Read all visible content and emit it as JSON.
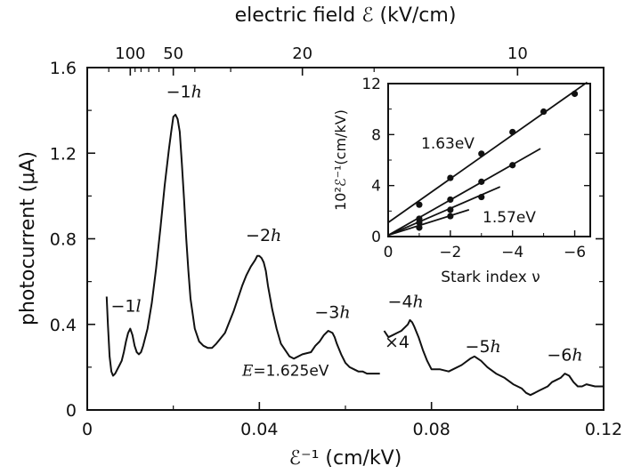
{
  "chart_data": [
    {
      "type": "line",
      "top_axis": {
        "label": "electric field ℰ (kV/cm)",
        "ticks": [
          {
            "label": "100",
            "field": 100
          },
          {
            "label": "50",
            "field": 50
          },
          {
            "label": "20",
            "field": 20
          },
          {
            "label": "10",
            "field": 10
          }
        ]
      },
      "xlabel": "ℰ⁻¹ (cm/kV)",
      "ylabel": "photocurrent (μA)",
      "xlim": [
        0,
        0.12
      ],
      "ylim": [
        0,
        1.6
      ],
      "x_ticks": [
        {
          "label": "0",
          "value": 0
        },
        {
          "label": "0.04",
          "value": 0.04
        },
        {
          "label": "0.08",
          "value": 0.08
        },
        {
          "label": "0.12",
          "value": 0.12
        }
      ],
      "y_ticks": [
        {
          "label": "0",
          "value": 0
        },
        {
          "label": "0.4",
          "value": 0.4
        },
        {
          "label": "0.8",
          "value": 0.8
        },
        {
          "label": "1.2",
          "value": 1.2
        },
        {
          "label": "1.6",
          "value": 1.6
        }
      ],
      "series": [
        {
          "x": [
            0.0045,
            0.0048,
            0.0052,
            0.0056,
            0.006,
            0.0065,
            0.007,
            0.0075,
            0.008,
            0.0085,
            0.009,
            0.0095,
            0.01,
            0.0105,
            0.011,
            0.0115,
            0.012,
            0.0125,
            0.013,
            0.014,
            0.015,
            0.016,
            0.017,
            0.018,
            0.019,
            0.0195,
            0.02,
            0.0205,
            0.021,
            0.0215,
            0.022,
            0.0225,
            0.023,
            0.0235,
            0.024,
            0.025,
            0.026,
            0.027,
            0.028,
            0.029,
            0.03,
            0.032,
            0.034,
            0.036,
            0.037,
            0.038,
            0.039,
            0.0395,
            0.04,
            0.0405,
            0.041,
            0.0415,
            0.042,
            0.043,
            0.044,
            0.045,
            0.046,
            0.047,
            0.048,
            0.05,
            0.052,
            0.053,
            0.054,
            0.055,
            0.056,
            0.057,
            0.0575,
            0.058,
            0.059,
            0.06,
            0.061,
            0.062,
            0.063,
            0.064,
            0.065,
            0.066,
            0.067,
            0.068
          ],
          "y": [
            0.53,
            0.4,
            0.25,
            0.18,
            0.16,
            0.17,
            0.19,
            0.21,
            0.23,
            0.27,
            0.32,
            0.36,
            0.38,
            0.35,
            0.3,
            0.27,
            0.26,
            0.27,
            0.3,
            0.38,
            0.5,
            0.66,
            0.85,
            1.05,
            1.22,
            1.3,
            1.37,
            1.38,
            1.36,
            1.3,
            1.15,
            0.98,
            0.8,
            0.65,
            0.52,
            0.38,
            0.32,
            0.3,
            0.29,
            0.29,
            0.31,
            0.36,
            0.46,
            0.58,
            0.63,
            0.67,
            0.7,
            0.72,
            0.72,
            0.71,
            0.69,
            0.65,
            0.58,
            0.47,
            0.38,
            0.31,
            0.28,
            0.25,
            0.24,
            0.26,
            0.27,
            0.3,
            0.32,
            0.35,
            0.37,
            0.36,
            0.34,
            0.31,
            0.26,
            0.22,
            0.2,
            0.19,
            0.18,
            0.18,
            0.17,
            0.17,
            0.17,
            0.17
          ]
        },
        {
          "x": [
            0.069,
            0.07,
            0.071,
            0.072,
            0.073,
            0.074,
            0.0745,
            0.075,
            0.0755,
            0.076,
            0.077,
            0.078,
            0.079,
            0.08,
            0.082,
            0.084,
            0.085,
            0.087,
            0.089,
            0.09,
            0.0915,
            0.093,
            0.095,
            0.097,
            0.099,
            0.101,
            0.102,
            0.103,
            0.104,
            0.105,
            0.107,
            0.108,
            0.109,
            0.11,
            0.111,
            0.112,
            0.113,
            0.114,
            0.115,
            0.116,
            0.118,
            0.12
          ],
          "y": [
            0.37,
            0.34,
            0.35,
            0.36,
            0.37,
            0.39,
            0.4,
            0.42,
            0.41,
            0.39,
            0.34,
            0.28,
            0.23,
            0.19,
            0.19,
            0.18,
            0.19,
            0.21,
            0.24,
            0.25,
            0.23,
            0.2,
            0.17,
            0.15,
            0.12,
            0.1,
            0.08,
            0.07,
            0.08,
            0.09,
            0.11,
            0.13,
            0.14,
            0.15,
            0.17,
            0.16,
            0.13,
            0.11,
            0.11,
            0.12,
            0.11,
            0.11
          ]
        }
      ],
      "annotations": [
        {
          "text": "−1l",
          "x": 0.009,
          "y": 0.46
        },
        {
          "text": "−1h",
          "x": 0.0225,
          "y": 1.46
        },
        {
          "text": "−2h",
          "x": 0.041,
          "y": 0.79
        },
        {
          "text": "−3h",
          "x": 0.057,
          "y": 0.43
        },
        {
          "text": "−4h",
          "x": 0.074,
          "y": 0.48
        },
        {
          "text": "×4",
          "x": 0.072,
          "y": 0.29
        },
        {
          "text": "−5h",
          "x": 0.092,
          "y": 0.27
        },
        {
          "text": "−6h",
          "x": 0.111,
          "y": 0.23
        },
        {
          "text": "E=1.625eV",
          "x": 0.036,
          "y": 0.16
        }
      ]
    },
    {
      "type": "scatter",
      "xlabel": "Stark index ν",
      "ylabel": "10²ℰ⁻¹(cm/kV)",
      "xlim": [
        0,
        -6.5
      ],
      "ylim": [
        0,
        12
      ],
      "x_ticks": [
        {
          "label": "0",
          "value": 0
        },
        {
          "label": "−2",
          "value": -2
        },
        {
          "label": "−4",
          "value": -4
        },
        {
          "label": "−6",
          "value": -6
        }
      ],
      "y_ticks": [
        {
          "label": "0",
          "value": 0
        },
        {
          "label": "4",
          "value": 4
        },
        {
          "label": "8",
          "value": 8
        },
        {
          "label": "12",
          "value": 12
        }
      ],
      "series": [
        {
          "name": "1.63eV",
          "points": [
            [
              -1,
              2.5
            ],
            [
              -2,
              4.6
            ],
            [
              -3,
              6.5
            ],
            [
              -4,
              8.2
            ],
            [
              -5,
              9.8
            ],
            [
              -6,
              11.2
            ]
          ],
          "fit": [
            [
              0,
              1.1
            ],
            [
              -6.4,
              12.1
            ]
          ]
        },
        {
          "name": "",
          "points": [
            [
              -1,
              1.4
            ],
            [
              -2,
              2.9
            ],
            [
              -3,
              4.3
            ],
            [
              -4,
              5.6
            ]
          ],
          "fit": [
            [
              0,
              0.1
            ],
            [
              -4.9,
              6.9
            ]
          ]
        },
        {
          "name": "",
          "points": [
            [
              -1,
              1.1
            ],
            [
              -2,
              2.1
            ],
            [
              -3,
              3.1
            ]
          ],
          "fit": [
            [
              0,
              0.1
            ],
            [
              -3.6,
              3.9
            ]
          ]
        },
        {
          "name": "1.57eV",
          "points": [
            [
              -1,
              0.7
            ],
            [
              -2,
              1.6
            ]
          ],
          "fit": [
            [
              0,
              0.1
            ],
            [
              -2.6,
              2.1
            ]
          ]
        }
      ]
    }
  ]
}
